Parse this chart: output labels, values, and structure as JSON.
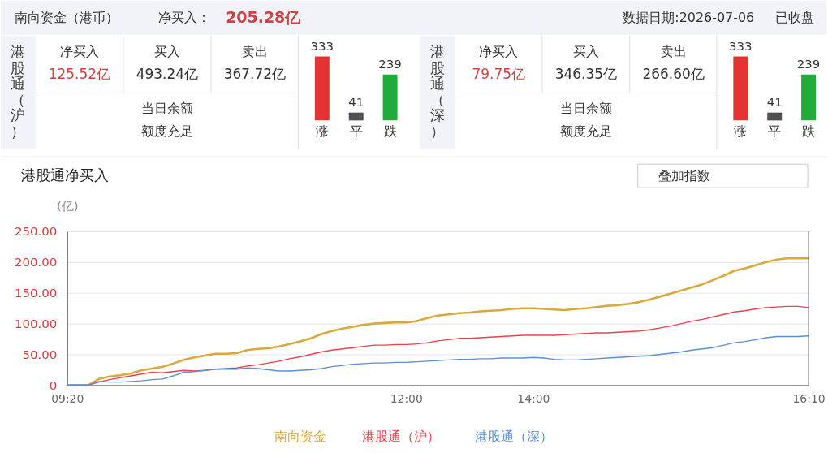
{
  "chart_data": [
    {
      "type": "other",
      "title": "南向资金（港币）",
      "annotations": [
        "净买入：",
        "205.28亿",
        "数据日期:2026-07-06",
        "已收盘"
      ]
    },
    {
      "type": "other",
      "title": "港股通（沪）",
      "annotations": [
        "净买入",
        "125.52亿",
        "买入",
        "493.24亿",
        "卖出",
        "367.72亿",
        "当日余额",
        "额度充足"
      ]
    },
    {
      "type": "bar",
      "categories": [
        "涨",
        "平",
        "跌"
      ],
      "values": [
        333,
        41,
        239
      ],
      "colors": [
        "#e53333",
        "#505050",
        "#22aa3a"
      ],
      "data_labels": true
    },
    {
      "type": "other",
      "title": "港股通（深）",
      "annotations": [
        "净买入",
        "79.75亿",
        "买入",
        "346.35亿",
        "卖出",
        "266.60亿",
        "当日余额",
        "额度充足"
      ]
    },
    {
      "type": "bar",
      "categories": [
        "涨",
        "平",
        "跌"
      ],
      "values": [
        333,
        41,
        239
      ],
      "colors": [
        "#e53333",
        "#505050",
        "#22aa3a"
      ],
      "data_labels": true
    },
    {
      "type": "line",
      "title": "港股通净买入",
      "ylabel": "(亿)",
      "annotations": [
        "叠加指数"
      ],
      "categories": [
        "09:20",
        null,
        null,
        null,
        null,
        null,
        null,
        null,
        null,
        null,
        null,
        null,
        null,
        null,
        null,
        null,
        null,
        null,
        null,
        null,
        null,
        null,
        null,
        null,
        null,
        null,
        null,
        null,
        null,
        null,
        null,
        null,
        "12:00",
        null,
        null,
        null,
        null,
        null,
        null,
        null,
        null,
        null,
        null,
        null,
        "14:00",
        null,
        null,
        null,
        null,
        null,
        null,
        null,
        null,
        null,
        null,
        null,
        null,
        null,
        null,
        null,
        null,
        null,
        null,
        null,
        null,
        null,
        null,
        null,
        null,
        null,
        "16:10"
      ],
      "ylim": [
        0,
        250
      ],
      "yticks": [
        0,
        {
          "value": 50,
          "label": "50.00"
        },
        {
          "value": 100,
          "label": "100.00"
        },
        {
          "value": 150,
          "label": "150.00"
        },
        {
          "value": 200,
          "label": "200.00"
        },
        {
          "value": 250,
          "label": "250.00"
        }
      ],
      "grid": "y",
      "legend": "bottom",
      "series": [
        {
          "name": "南向资金",
          "color": "#dca83c",
          "values": [
            0,
            0,
            0,
            10,
            14,
            16,
            19,
            24,
            27,
            30,
            35,
            41,
            45,
            48,
            51,
            51,
            52,
            57,
            59,
            60,
            63,
            67,
            71,
            76,
            83,
            88,
            92,
            95,
            98,
            100,
            101,
            102,
            102,
            104,
            109,
            113,
            115,
            117,
            118,
            120,
            121,
            122,
            124,
            125,
            125,
            124,
            123,
            122,
            124,
            125,
            127,
            129,
            130,
            132,
            135,
            139,
            144,
            149,
            154,
            159,
            164,
            171,
            178,
            186,
            190,
            195,
            200,
            204,
            206,
            206,
            206
          ]
        },
        {
          "name": "港股通（沪）",
          "color": "#ef3f4a",
          "values": [
            0,
            0,
            0,
            5,
            9,
            12,
            15,
            18,
            21,
            20,
            22,
            24,
            23,
            24,
            26,
            27,
            28,
            31,
            33,
            36,
            39,
            43,
            46,
            50,
            54,
            57,
            59,
            61,
            63,
            65,
            65,
            66,
            66,
            67,
            69,
            72,
            74,
            76,
            76,
            77,
            78,
            79,
            80,
            81,
            81,
            81,
            81,
            82,
            83,
            84,
            85,
            85,
            86,
            87,
            88,
            90,
            93,
            96,
            100,
            104,
            107,
            111,
            115,
            119,
            121,
            124,
            126,
            127,
            128,
            128,
            126
          ]
        },
        {
          "name": "港股通（深）",
          "color": "#5b8fd9",
          "values": [
            0,
            0,
            0,
            6,
            5,
            5,
            6,
            7,
            9,
            10,
            15,
            21,
            22,
            24,
            26,
            26,
            26,
            28,
            27,
            25,
            23,
            23,
            24,
            25,
            27,
            30,
            32,
            34,
            35,
            36,
            36,
            37,
            37,
            38,
            39,
            40,
            41,
            42,
            42,
            43,
            43,
            44,
            44,
            44,
            45,
            44,
            42,
            41,
            41,
            42,
            43,
            44,
            45,
            46,
            47,
            48,
            50,
            52,
            54,
            57,
            59,
            61,
            65,
            69,
            71,
            74,
            77,
            79,
            79,
            79,
            80
          ]
        }
      ]
    }
  ]
}
